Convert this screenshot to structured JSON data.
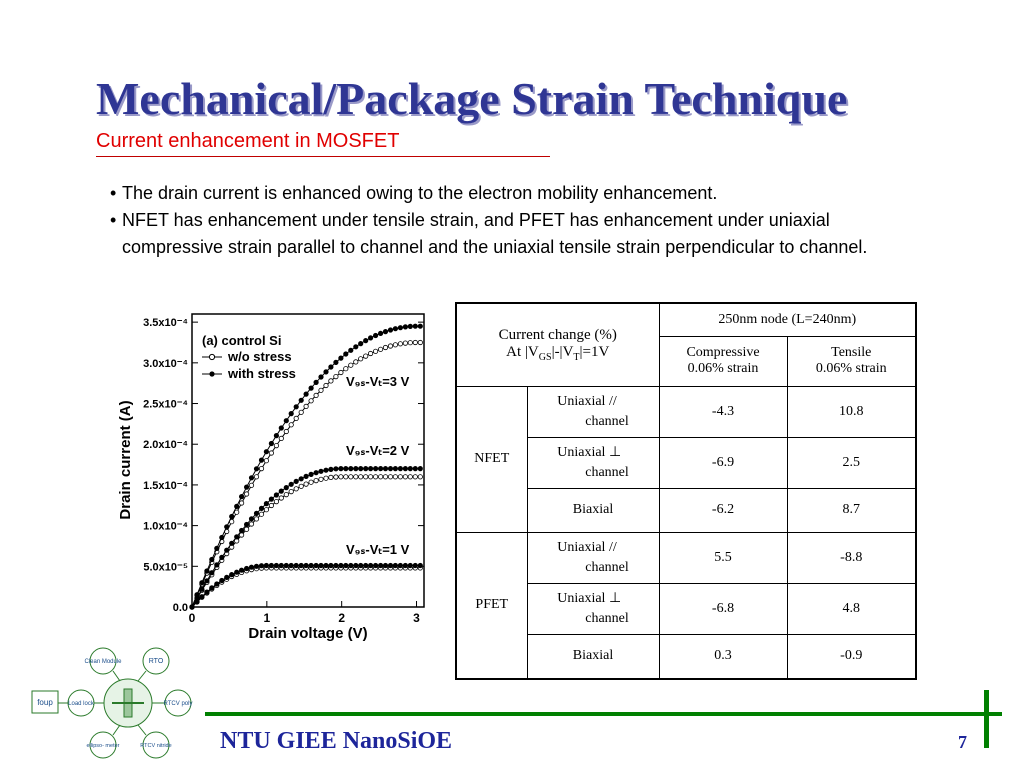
{
  "slide": {
    "title": "Mechanical/Package Strain Technique",
    "subtitle": "Current enhancement in MOSFET",
    "bullets": [
      "The drain current is enhanced owing to the electron mobility enhancement.",
      "NFET has enhancement under tensile strain, and PFET has enhancement under uniaxial compressive strain parallel to channel and the uniaxial tensile strain perpendicular to channel."
    ]
  },
  "chart_data": {
    "type": "line",
    "xlabel": "Drain voltage (V)",
    "ylabel": "Drain current (A)",
    "x_ticks": [
      "0",
      "1",
      "2",
      "3"
    ],
    "y_ticks": [
      "0.0",
      "5.0x10⁻⁵",
      "1.0x10⁻⁴",
      "1.5x10⁻⁴",
      "2.0x10⁻⁴",
      "2.5x10⁻⁴",
      "3.0x10⁻⁴",
      "3.5x10⁻⁴"
    ],
    "xlim": [
      0,
      3.1
    ],
    "ylim": [
      0,
      0.00036
    ],
    "legend_title": "(a) control Si",
    "legend": [
      "w/o stress",
      "with stress"
    ],
    "annotations": [
      "V₉ₛ-Vₜ=3 V",
      "V₉ₛ-Vₜ=2 V",
      "V₉ₛ-Vₜ=1 V"
    ],
    "series": [
      {
        "name": "w/o stress",
        "curve": "Vgs-Vt=3 V",
        "ymax": 0.000325
      },
      {
        "name": "with stress",
        "curve": "Vgs-Vt=3 V",
        "ymax": 0.000345
      },
      {
        "name": "w/o stress",
        "curve": "Vgs-Vt=2 V",
        "ymax": 0.00016
      },
      {
        "name": "with stress",
        "curve": "Vgs-Vt=2 V",
        "ymax": 0.00017
      },
      {
        "name": "w/o stress",
        "curve": "Vgs-Vt=1 V",
        "ymax": 4.8e-05
      },
      {
        "name": "with stress",
        "curve": "Vgs-Vt=1 V",
        "ymax": 5.1e-05
      }
    ]
  },
  "table": {
    "header": {
      "corner_line1": "Current change (%)",
      "corner_line2": "At |V",
      "gs_sub": "GS",
      "corner_mid": "|-|V",
      "t_sub": "T",
      "corner_end": "|=1V",
      "node": "250nm node (L=240nm)",
      "comp_line1": "Compressive",
      "comp_line2": "0.06% strain",
      "tens_line1": "Tensile",
      "tens_line2": "0.06% strain"
    },
    "nfet": {
      "label": "NFET",
      "r1_type1": "Uniaxial //",
      "r1_type2": "channel",
      "r1_comp": "-4.3",
      "r1_tens": "10.8",
      "r2_type1": "Uniaxial ⊥",
      "r2_type2": "channel",
      "r2_comp": "-6.9",
      "r2_tens": "2.5",
      "r3_type": "Biaxial",
      "r3_comp": "-6.2",
      "r3_tens": "8.7"
    },
    "pfet": {
      "label": "PFET",
      "r1_type1": "Uniaxial //",
      "r1_type2": "channel",
      "r1_comp": "5.5",
      "r1_tens": "-8.8",
      "r2_type1": "Uniaxial ⊥",
      "r2_type2": "channel",
      "r2_comp": "-6.8",
      "r2_tens": "4.8",
      "r3_type": "Biaxial",
      "r3_comp": "0.3",
      "r3_tens": "-0.9"
    }
  },
  "logo": {
    "clean": "Clean Module",
    "rto": "RTO",
    "load": "Load lock",
    "foup": "foup",
    "rtcv_poly": "RTCV poly",
    "ellipso": "ellipso- meter",
    "rtcv_nitride": "RTCV nitride"
  },
  "footer": {
    "org": "NTU GIEE NanoSiOE",
    "page": "7"
  },
  "colors": {
    "title": "#2f3694",
    "subtitle": "#e00000",
    "footer": "#1d259a",
    "accent_green": "#008000"
  }
}
